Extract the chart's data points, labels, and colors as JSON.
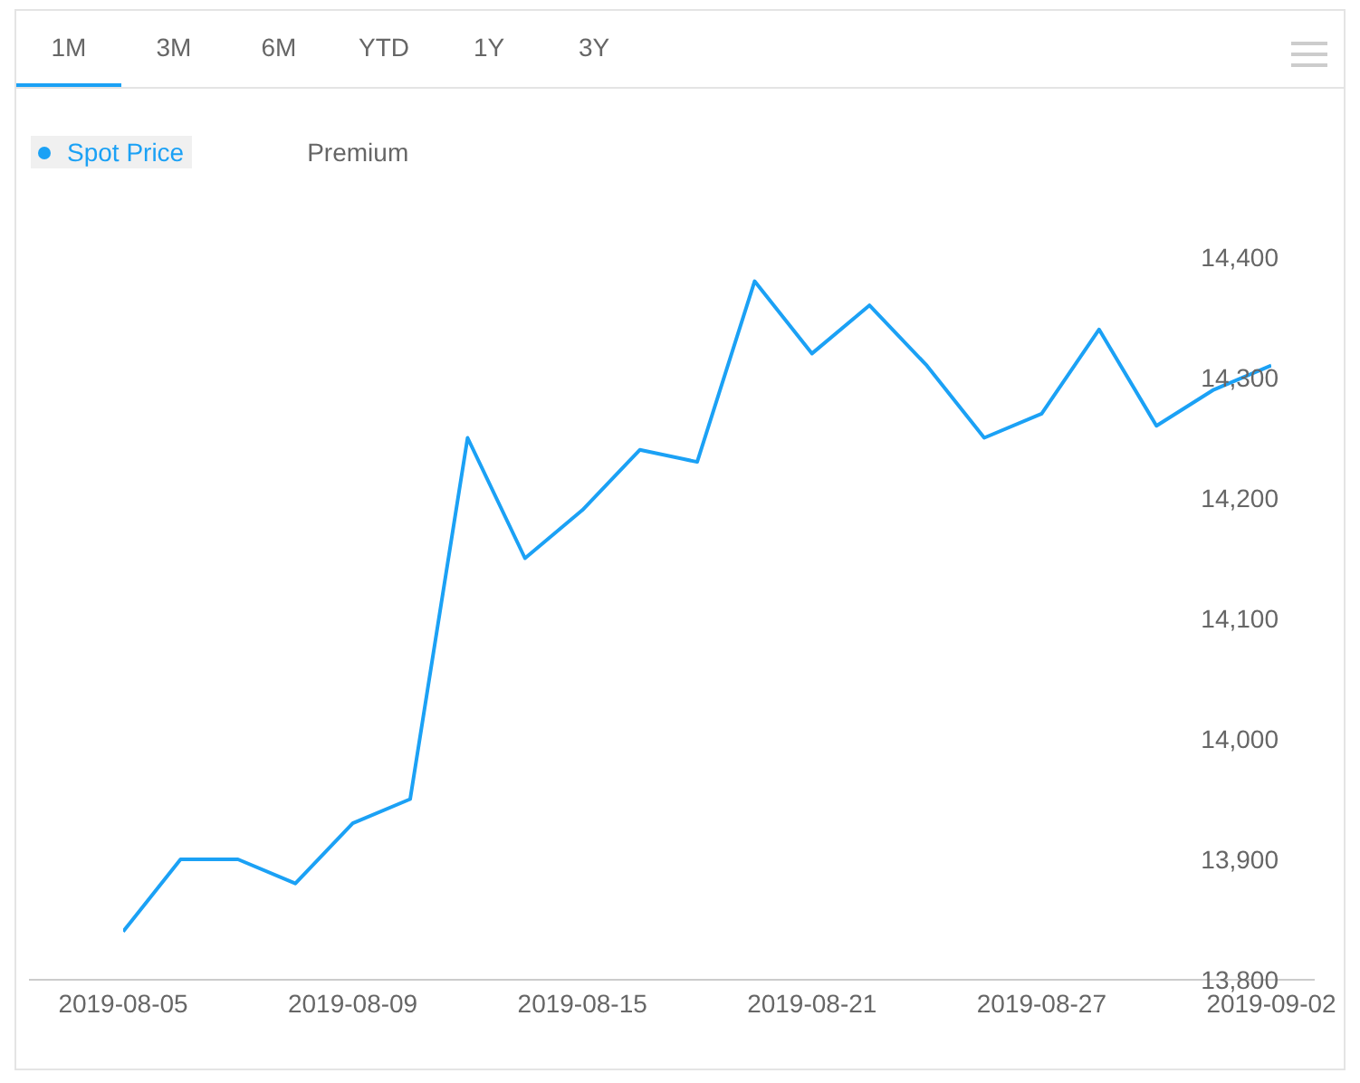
{
  "chart_data": {
    "type": "line",
    "categories": [
      "2019-08-05",
      null,
      null,
      null,
      "2019-08-09",
      null,
      null,
      null,
      "2019-08-15",
      null,
      null,
      null,
      "2019-08-21",
      null,
      null,
      null,
      "2019-08-27",
      null,
      null,
      null,
      "2019-09-02"
    ],
    "series": [
      {
        "name": "Spot Price",
        "color": "#1ba1f5",
        "values": [
          13840,
          13900,
          13900,
          13880,
          13930,
          13950,
          14250,
          14150,
          14190,
          14240,
          14230,
          14380,
          14320,
          14360,
          14310,
          14250,
          14270,
          14340,
          14260,
          14290,
          14310
        ]
      },
      {
        "name": "Premium",
        "color": "#666666",
        "values": [
          null,
          null,
          null,
          null,
          null,
          null,
          null,
          null,
          null,
          null,
          null,
          null,
          null,
          null,
          null,
          null,
          null,
          null,
          null,
          null,
          null
        ]
      }
    ],
    "ylim": [
      13800,
      14400
    ],
    "yticks": [
      {
        "value": 13800,
        "label": "13,800"
      },
      {
        "value": 13900,
        "label": "13,900"
      },
      {
        "value": 14000,
        "label": "14,000"
      },
      {
        "value": 14100,
        "label": "14,100"
      },
      {
        "value": 14200,
        "label": "14,200"
      },
      {
        "value": 14300,
        "label": "14,300"
      },
      {
        "value": 14400,
        "label": "14,400"
      }
    ],
    "grid": false,
    "legend": "top left",
    "marker": "none",
    "line_style": "solid",
    "annotations": [
      "1M",
      "3M",
      "6M",
      "YTD",
      "1Y",
      "3Y"
    ]
  }
}
